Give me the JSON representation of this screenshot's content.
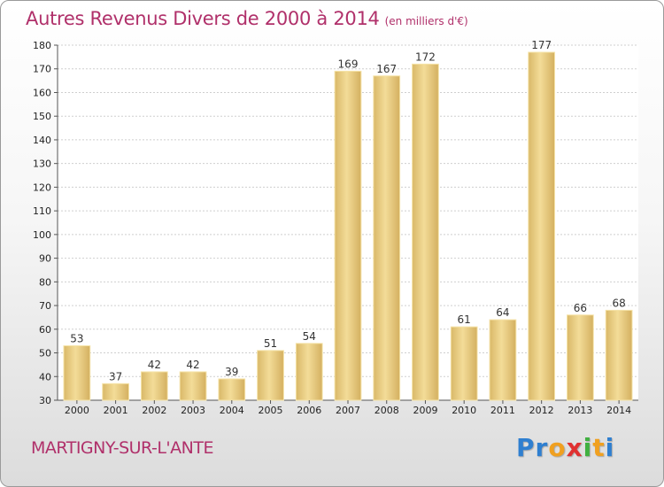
{
  "chart_data": {
    "type": "bar",
    "title": "Autres Revenus Divers de 2000 à 2014",
    "subtitle": "(en milliers d'€)",
    "categories": [
      "2000",
      "2001",
      "2002",
      "2003",
      "2004",
      "2005",
      "2006",
      "2007",
      "2008",
      "2009",
      "2010",
      "2011",
      "2012",
      "2013",
      "2014"
    ],
    "values": [
      53,
      37,
      42,
      42,
      39,
      51,
      54,
      169,
      167,
      172,
      61,
      64,
      177,
      66,
      68
    ],
    "ylim": [
      30,
      180
    ],
    "yticks": [
      30,
      40,
      50,
      60,
      70,
      80,
      90,
      100,
      110,
      120,
      130,
      140,
      150,
      160,
      170,
      180
    ],
    "grid": true,
    "bar_color": "#e6c77a"
  },
  "place_name": "MARTIGNY-SUR-L'ANTE",
  "logo": {
    "letters": [
      {
        "ch": "P",
        "color": "#2f7fd0"
      },
      {
        "ch": "r",
        "color": "#2f7fd0"
      },
      {
        "ch": "o",
        "color": "#f0a020"
      },
      {
        "ch": "x",
        "color": "#e03030"
      },
      {
        "ch": "i",
        "color": "#40b040"
      },
      {
        "ch": "t",
        "color": "#f0a020"
      },
      {
        "ch": "i",
        "color": "#2f7fd0"
      }
    ]
  }
}
